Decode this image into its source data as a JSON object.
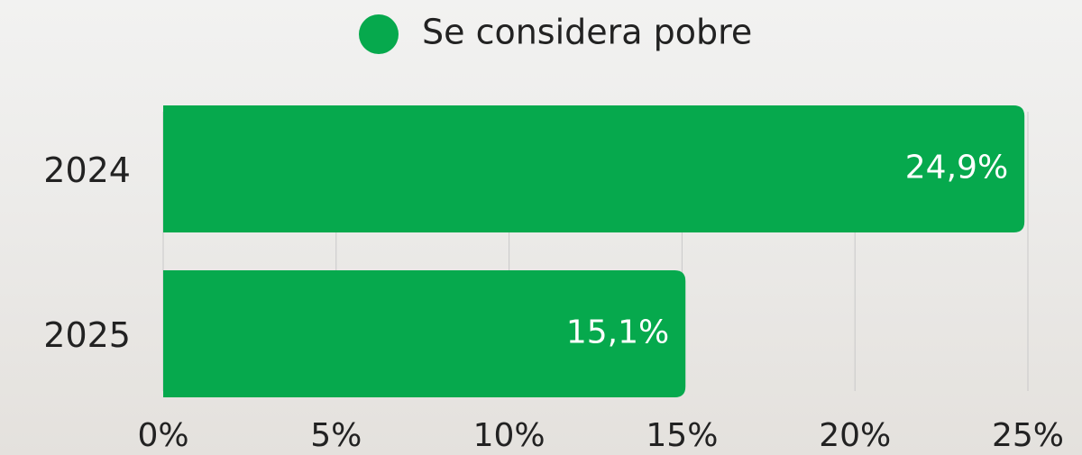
{
  "chart_data": {
    "type": "bar",
    "orientation": "horizontal",
    "categories": [
      "2024",
      "2025"
    ],
    "series": [
      {
        "name": "Se considera pobre",
        "color": "#06a94d",
        "values": [
          24.9,
          15.1
        ],
        "value_labels": [
          "24,9%",
          "15,1%"
        ]
      }
    ],
    "xlim": [
      0,
      25
    ],
    "xticks": [
      {
        "value": 0,
        "label": "0%"
      },
      {
        "value": 5,
        "label": "5%"
      },
      {
        "value": 10,
        "label": "10%"
      },
      {
        "value": 15,
        "label": "15%"
      },
      {
        "value": 20,
        "label": "20%"
      },
      {
        "value": 25,
        "label": "25%"
      }
    ],
    "grid": true,
    "legend": "top"
  }
}
